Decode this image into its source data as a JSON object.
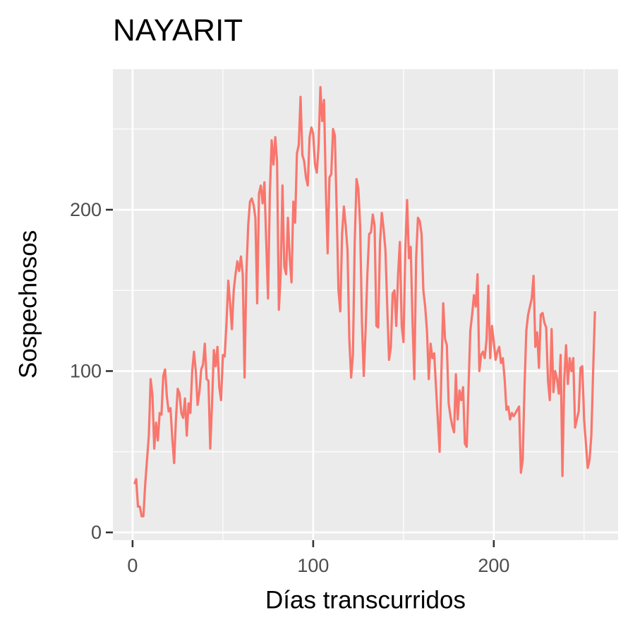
{
  "chart_data": {
    "type": "line",
    "title": "NAYARIT",
    "x_label": "Días transcurridos",
    "y_label": "Sospechosos",
    "color": "#F8766D",
    "grid": true,
    "xlim": [
      -10.9,
      268.8
    ],
    "ylim": [
      -4.8,
      287.1
    ],
    "xticks": [
      0,
      100,
      200
    ],
    "yticks": [
      0,
      100,
      200
    ],
    "x_minor_ticks": [
      50,
      150,
      250
    ],
    "y_minor_ticks": [
      50,
      150,
      250
    ],
    "x": [
      1,
      2,
      3,
      4,
      5,
      6,
      7,
      8,
      9,
      10,
      11,
      12,
      13,
      14,
      15,
      16,
      17,
      18,
      19,
      20,
      21,
      22,
      23,
      24,
      25,
      26,
      27,
      28,
      29,
      30,
      31,
      32,
      33,
      34,
      35,
      36,
      37,
      38,
      39,
      40,
      41,
      42,
      43,
      44,
      45,
      46,
      47,
      48,
      49,
      50,
      51,
      52,
      53,
      54,
      55,
      56,
      57,
      58,
      59,
      60,
      61,
      62,
      63,
      64,
      65,
      66,
      67,
      68,
      69,
      70,
      71,
      72,
      73,
      74,
      75,
      76,
      77,
      78,
      79,
      80,
      81,
      82,
      83,
      84,
      85,
      86,
      87,
      88,
      89,
      90,
      91,
      92,
      93,
      94,
      95,
      96,
      97,
      98,
      99,
      100,
      101,
      102,
      103,
      104,
      105,
      106,
      107,
      108,
      109,
      110,
      111,
      112,
      113,
      114,
      115,
      116,
      117,
      118,
      119,
      120,
      121,
      122,
      123,
      124,
      125,
      126,
      127,
      128,
      129,
      130,
      131,
      132,
      133,
      134,
      135,
      136,
      137,
      138,
      139,
      140,
      141,
      142,
      143,
      144,
      145,
      146,
      147,
      148,
      149,
      150,
      151,
      152,
      153,
      154,
      155,
      156,
      157,
      158,
      159,
      160,
      161,
      162,
      163,
      164,
      165,
      166,
      167,
      168,
      169,
      170,
      171,
      172,
      173,
      174,
      175,
      176,
      177,
      178,
      179,
      180,
      181,
      182,
      183,
      184,
      185,
      186,
      187,
      188,
      189,
      190,
      191,
      192,
      193,
      194,
      195,
      196,
      197,
      198,
      199,
      200,
      201,
      202,
      203,
      204,
      205,
      206,
      207,
      208,
      209,
      210,
      211,
      212,
      213,
      214,
      215,
      216,
      217,
      218,
      219,
      220,
      221,
      222,
      223,
      224,
      225,
      226,
      227,
      228,
      229,
      230,
      231,
      232,
      233,
      234,
      235,
      236,
      237,
      238,
      239,
      240,
      241,
      242,
      243,
      244,
      245,
      246,
      247,
      248,
      249,
      250,
      251,
      252,
      253,
      254,
      255,
      256
    ],
    "values": [
      30,
      33,
      16,
      16,
      10,
      10,
      30,
      45,
      60,
      95,
      85,
      52,
      68,
      57,
      74,
      73,
      97,
      101,
      84,
      75,
      77,
      58,
      43,
      70,
      89,
      86,
      74,
      71,
      83,
      60,
      80,
      74,
      100,
      112,
      100,
      79,
      87,
      101,
      104,
      117,
      95,
      94,
      52,
      80,
      113,
      103,
      115,
      90,
      82,
      110,
      109,
      130,
      156,
      142,
      126,
      150,
      160,
      168,
      162,
      171,
      160,
      96,
      160,
      190,
      205,
      207,
      203,
      195,
      142,
      210,
      215,
      204,
      217,
      180,
      145,
      210,
      243,
      228,
      245,
      230,
      138,
      160,
      215,
      165,
      160,
      195,
      170,
      155,
      205,
      192,
      235,
      240,
      270,
      234,
      230,
      220,
      215,
      245,
      251,
      247,
      228,
      223,
      240,
      276,
      255,
      268,
      213,
      173,
      220,
      222,
      250,
      246,
      200,
      150,
      137,
      185,
      202,
      190,
      175,
      120,
      96,
      110,
      180,
      219,
      213,
      190,
      130,
      97,
      125,
      160,
      185,
      186,
      197,
      190,
      128,
      127,
      180,
      198,
      188,
      175,
      140,
      107,
      115,
      148,
      150,
      128,
      160,
      180,
      128,
      118,
      175,
      206,
      170,
      177,
      130,
      95,
      170,
      195,
      193,
      185,
      150,
      140,
      125,
      95,
      117,
      108,
      111,
      90,
      70,
      50,
      100,
      142,
      120,
      116,
      80,
      72,
      66,
      62,
      98,
      70,
      88,
      82,
      90,
      55,
      53,
      90,
      125,
      135,
      147,
      140,
      160,
      100,
      110,
      112,
      108,
      120,
      153,
      108,
      128,
      118,
      107,
      112,
      115,
      105,
      108,
      95,
      76,
      78,
      70,
      74,
      72,
      74,
      76,
      78,
      37,
      45,
      90,
      125,
      135,
      140,
      145,
      159,
      115,
      124,
      102,
      135,
      136,
      130,
      127,
      94,
      82,
      126,
      87,
      100,
      95,
      86,
      110,
      35,
      95,
      116,
      92,
      108,
      100,
      108,
      65,
      70,
      75,
      102,
      103,
      70,
      55,
      40,
      45,
      60,
      100,
      137
    ]
  }
}
